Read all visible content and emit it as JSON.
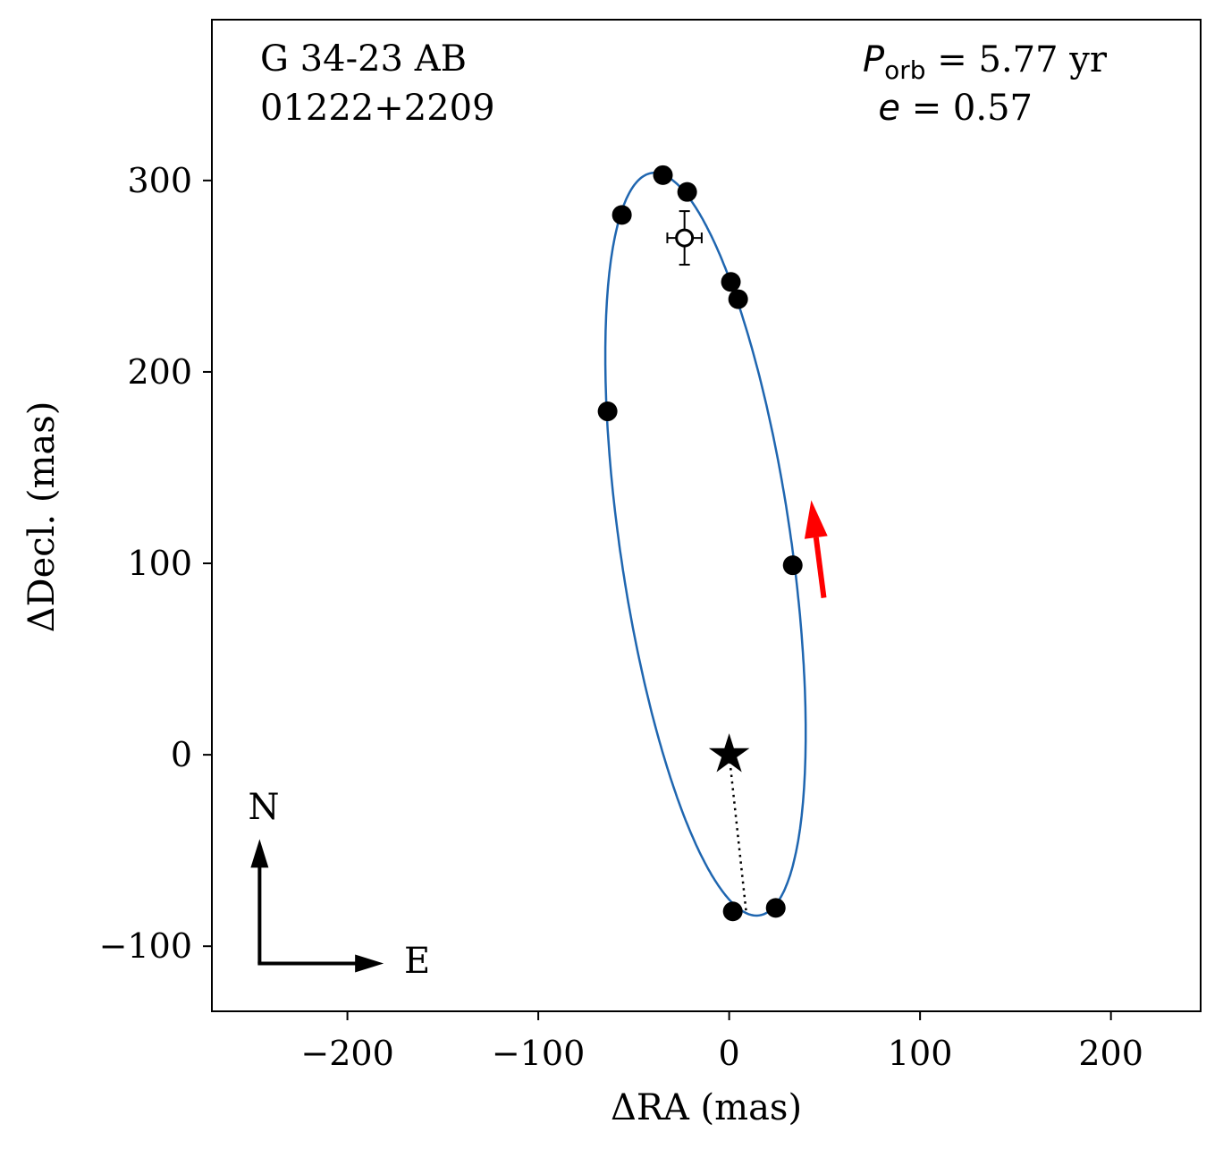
{
  "chart_data": {
    "type": "scatter",
    "title": "",
    "xlabel": "ΔRA  (mas)",
    "ylabel": "ΔDecl.  (mas)",
    "xlim": [
      -271,
      247
    ],
    "ylim": [
      -134,
      384
    ],
    "xticks": [
      -200,
      -100,
      0,
      100,
      200
    ],
    "yticks": [
      -100,
      0,
      100,
      200,
      300
    ],
    "xtick_labels": [
      "−200",
      "−100",
      "0",
      "100",
      "200"
    ],
    "ytick_labels": [
      "−100",
      "0",
      "100",
      "200",
      "300"
    ],
    "grid": false,
    "annotations": {
      "name": "G 34-23 AB",
      "id": "01222+2209",
      "period_symbol": "P",
      "period_sub": "orb",
      "period_text": " =  5.77 yr",
      "ecc_symbol": "e",
      "ecc_text": " = 0.57",
      "north": "N",
      "east": "E"
    },
    "observations": [
      {
        "x": -34.7,
        "y": 302.8,
        "yerr": 0
      },
      {
        "x": -22.0,
        "y": 294.0,
        "yerr": 0
      },
      {
        "x": -56.2,
        "y": 282.0,
        "yerr": 0
      },
      {
        "x": 0.9,
        "y": 247.0,
        "yerr": 0
      },
      {
        "x": 4.7,
        "y": 238.0,
        "yerr": 0
      },
      {
        "x": -63.7,
        "y": 179.4,
        "yerr": 0
      },
      {
        "x": 33.3,
        "y": 99.0,
        "yerr": 2.5
      },
      {
        "x": 1.9,
        "y": -81.8,
        "yerr": 2.5
      },
      {
        "x": 24.4,
        "y": -80.0,
        "yerr": 0
      }
    ],
    "open_observation": {
      "x": -23.4,
      "y": 270.0,
      "xerr": 9,
      "yerr": 14
    },
    "primary_star": {
      "x": 0,
      "y": 0
    },
    "periastron_line": {
      "x": 8.9,
      "y": -82
    },
    "orbit_curve": {
      "center": [
        -12.4,
        110
      ],
      "u": [
        -26.7,
        194
      ],
      "v": [
        45.2,
        0
      ],
      "color": "#1f66b0"
    },
    "motion_arrow": {
      "from": [
        49.6,
        82
      ],
      "to": [
        43,
        133
      ],
      "color": "#ff0000"
    },
    "compass": {
      "origin": [
        -246,
        -109
      ],
      "north_tip_y": -44,
      "east_tip_x": -181
    }
  }
}
